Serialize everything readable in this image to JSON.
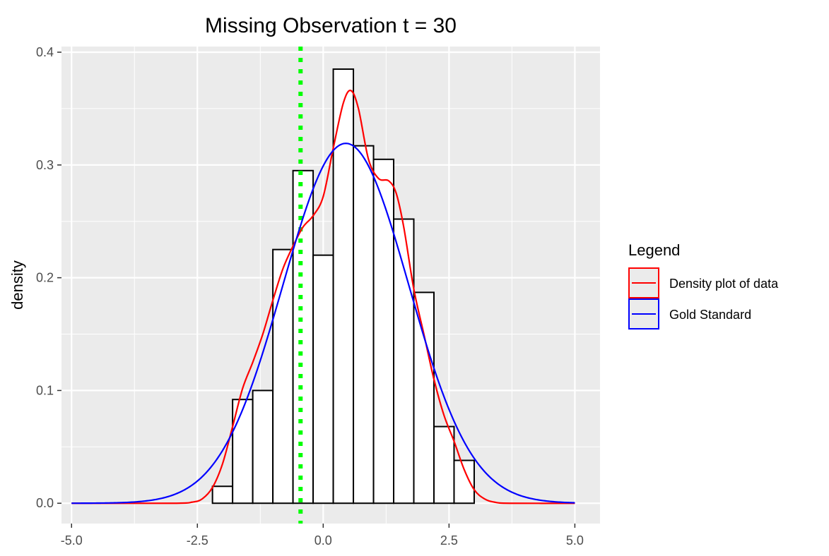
{
  "chart_data": {
    "type": "histogram",
    "title": "Missing Observation t = 30",
    "xlabel": "",
    "ylabel": "density",
    "xlim": [
      -5.2,
      5.5
    ],
    "ylim": [
      -0.018,
      0.405
    ],
    "x_ticks": [
      -5.0,
      -2.5,
      0.0,
      2.5,
      5.0
    ],
    "x_tick_labels": [
      "-5.0",
      "-2.5",
      "0.0",
      "2.5",
      "5.0"
    ],
    "y_ticks": [
      0.0,
      0.1,
      0.2,
      0.3,
      0.4
    ],
    "y_tick_labels": [
      "0.0",
      "0.1",
      "0.2",
      "0.3",
      "0.4"
    ],
    "grid": true,
    "background": "#ebebeb",
    "histogram": {
      "fill": "#ffffff",
      "stroke": "#000000",
      "bins": [
        {
          "x0": -2.2,
          "x1": -1.8,
          "density": 0.015
        },
        {
          "x0": -1.8,
          "x1": -1.4,
          "density": 0.092
        },
        {
          "x0": -1.4,
          "x1": -1.0,
          "density": 0.1
        },
        {
          "x0": -1.0,
          "x1": -0.6,
          "density": 0.225
        },
        {
          "x0": -0.6,
          "x1": -0.2,
          "density": 0.295
        },
        {
          "x0": -0.2,
          "x1": 0.2,
          "density": 0.22
        },
        {
          "x0": 0.2,
          "x1": 0.6,
          "density": 0.385
        },
        {
          "x0": 0.6,
          "x1": 1.0,
          "density": 0.317
        },
        {
          "x0": 1.0,
          "x1": 1.4,
          "density": 0.305
        },
        {
          "x0": 1.4,
          "x1": 1.8,
          "density": 0.252
        },
        {
          "x0": 1.8,
          "x1": 2.2,
          "density": 0.187
        },
        {
          "x0": 2.2,
          "x1": 2.6,
          "density": 0.068
        },
        {
          "x0": 2.6,
          "x1": 3.0,
          "density": 0.038
        }
      ]
    },
    "vline": {
      "x": -0.45,
      "color": "#00ff00",
      "style": "dotted"
    },
    "series": [
      {
        "name": "Density plot of data",
        "color": "#ff0000",
        "x": [
          -5.0,
          -3.0,
          -2.6,
          -2.4,
          -2.2,
          -2.0,
          -1.8,
          -1.6,
          -1.4,
          -1.2,
          -1.0,
          -0.8,
          -0.6,
          -0.4,
          -0.2,
          0.0,
          0.2,
          0.4,
          0.55,
          0.7,
          0.9,
          1.1,
          1.3,
          1.45,
          1.6,
          1.8,
          2.0,
          2.2,
          2.4,
          2.6,
          2.8,
          3.0,
          3.2,
          3.4,
          3.7,
          5.0
        ],
        "y": [
          0.0,
          0.0,
          0.001,
          0.004,
          0.014,
          0.035,
          0.068,
          0.102,
          0.125,
          0.15,
          0.18,
          0.208,
          0.228,
          0.245,
          0.255,
          0.272,
          0.315,
          0.355,
          0.366,
          0.35,
          0.305,
          0.288,
          0.286,
          0.275,
          0.245,
          0.19,
          0.15,
          0.11,
          0.078,
          0.055,
          0.03,
          0.012,
          0.004,
          0.001,
          0.0,
          0.0
        ]
      },
      {
        "name": "Gold Standard",
        "color": "#0000ff",
        "mean": 0.45,
        "sd": 1.25,
        "x_range": [
          -5.0,
          5.0
        ]
      }
    ],
    "legend": {
      "title": "Legend",
      "position": "right",
      "entries": [
        {
          "label": "Density plot of data",
          "color": "#ff0000"
        },
        {
          "label": "Gold Standard",
          "color": "#0000ff"
        }
      ]
    }
  }
}
